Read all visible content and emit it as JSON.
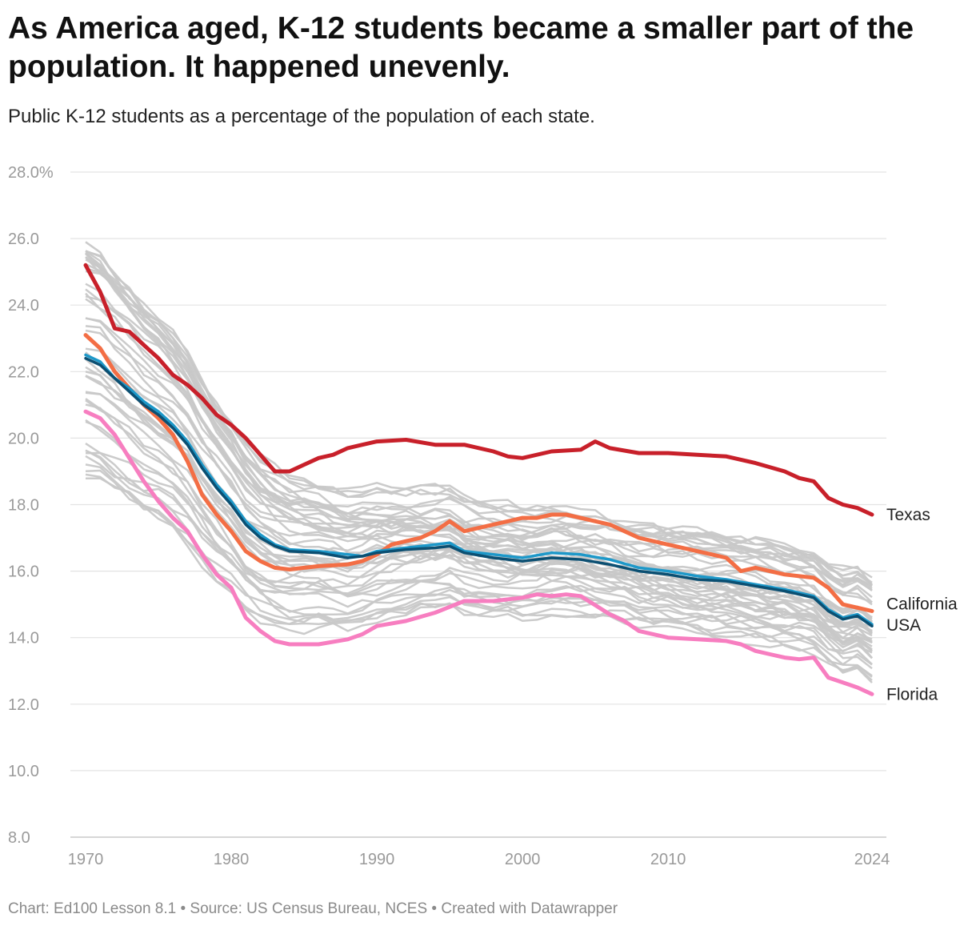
{
  "title": "As America aged, K-12 students became a smaller part of the population. It happened unevenly.",
  "subtitle": "Public K-12 students as a percentage of the population of each state.",
  "footer": "Chart: Ed100 Lesson 8.1 • Source: US Census Bureau, NCES • Created with Datawrapper",
  "chart_data": {
    "type": "line",
    "title": "As America aged, K-12 students became a smaller part of the population. It happened unevenly.",
    "subtitle": "Public K-12 students as a percentage of the population of each state.",
    "xlabel": "",
    "ylabel": "",
    "xlim": [
      1970,
      2024
    ],
    "ylim": [
      8,
      28
    ],
    "x_ticks": [
      {
        "value": 1970,
        "label": "1970"
      },
      {
        "value": 1980,
        "label": "1980"
      },
      {
        "value": 1990,
        "label": "1990"
      },
      {
        "value": 2000,
        "label": "2000"
      },
      {
        "value": 2010,
        "label": "2010"
      },
      {
        "value": 2024,
        "label": "2024"
      }
    ],
    "y_ticks": [
      {
        "value": 28,
        "label": "28.0%"
      },
      {
        "value": 26,
        "label": "26.0"
      },
      {
        "value": 24,
        "label": "24.0"
      },
      {
        "value": 22,
        "label": "22.0"
      },
      {
        "value": 20,
        "label": "20.0"
      },
      {
        "value": 18,
        "label": "18.0"
      },
      {
        "value": 16,
        "label": "16.0"
      },
      {
        "value": 14,
        "label": "14.0"
      },
      {
        "value": 12,
        "label": "12.0"
      },
      {
        "value": 10,
        "label": "10.0"
      },
      {
        "value": 8,
        "label": "8.0"
      }
    ],
    "grid": true,
    "legend": "direct labels at line ends",
    "background_color": "#c8c8c8",
    "series": [
      {
        "name": "Texas",
        "color": "#c8202a",
        "points": [
          [
            1970,
            25.2
          ],
          [
            1971,
            24.4
          ],
          [
            1972,
            23.3
          ],
          [
            1973,
            23.2
          ],
          [
            1974,
            22.8
          ],
          [
            1975,
            22.4
          ],
          [
            1976,
            21.9
          ],
          [
            1977,
            21.6
          ],
          [
            1978,
            21.2
          ],
          [
            1979,
            20.7
          ],
          [
            1980,
            20.4
          ],
          [
            1981,
            20.0
          ],
          [
            1982,
            19.5
          ],
          [
            1983,
            19.0
          ],
          [
            1984,
            19.0
          ],
          [
            1985,
            19.2
          ],
          [
            1986,
            19.4
          ],
          [
            1987,
            19.5
          ],
          [
            1988,
            19.7
          ],
          [
            1989,
            19.8
          ],
          [
            1990,
            19.9
          ],
          [
            1992,
            19.95
          ],
          [
            1994,
            19.8
          ],
          [
            1996,
            19.8
          ],
          [
            1998,
            19.6
          ],
          [
            1999,
            19.45
          ],
          [
            2000,
            19.4
          ],
          [
            2002,
            19.6
          ],
          [
            2004,
            19.65
          ],
          [
            2005,
            19.9
          ],
          [
            2006,
            19.7
          ],
          [
            2008,
            19.55
          ],
          [
            2010,
            19.55
          ],
          [
            2012,
            19.5
          ],
          [
            2014,
            19.45
          ],
          [
            2016,
            19.25
          ],
          [
            2018,
            19.0
          ],
          [
            2019,
            18.8
          ],
          [
            2020,
            18.7
          ],
          [
            2021,
            18.2
          ],
          [
            2022,
            18.0
          ],
          [
            2023,
            17.9
          ],
          [
            2024,
            17.7
          ]
        ]
      },
      {
        "name": "California",
        "color": "#f36e45",
        "points": [
          [
            1970,
            23.1
          ],
          [
            1971,
            22.7
          ],
          [
            1972,
            22.0
          ],
          [
            1973,
            21.5
          ],
          [
            1974,
            21.0
          ],
          [
            1975,
            20.6
          ],
          [
            1976,
            20.1
          ],
          [
            1977,
            19.3
          ],
          [
            1978,
            18.3
          ],
          [
            1979,
            17.7
          ],
          [
            1980,
            17.2
          ],
          [
            1981,
            16.6
          ],
          [
            1982,
            16.3
          ],
          [
            1983,
            16.1
          ],
          [
            1984,
            16.05
          ],
          [
            1985,
            16.1
          ],
          [
            1986,
            16.15
          ],
          [
            1988,
            16.2
          ],
          [
            1989,
            16.3
          ],
          [
            1990,
            16.5
          ],
          [
            1991,
            16.8
          ],
          [
            1992,
            16.9
          ],
          [
            1993,
            17.0
          ],
          [
            1994,
            17.2
          ],
          [
            1995,
            17.5
          ],
          [
            1996,
            17.2
          ],
          [
            1997,
            17.3
          ],
          [
            1998,
            17.4
          ],
          [
            1999,
            17.5
          ],
          [
            2000,
            17.6
          ],
          [
            2001,
            17.6
          ],
          [
            2002,
            17.7
          ],
          [
            2003,
            17.7
          ],
          [
            2004,
            17.6
          ],
          [
            2005,
            17.5
          ],
          [
            2006,
            17.4
          ],
          [
            2007,
            17.2
          ],
          [
            2008,
            17.0
          ],
          [
            2010,
            16.8
          ],
          [
            2012,
            16.6
          ],
          [
            2013,
            16.5
          ],
          [
            2014,
            16.4
          ],
          [
            2015,
            16.0
          ],
          [
            2016,
            16.1
          ],
          [
            2018,
            15.9
          ],
          [
            2019,
            15.85
          ],
          [
            2020,
            15.8
          ],
          [
            2021,
            15.5
          ],
          [
            2022,
            15.0
          ],
          [
            2023,
            14.9
          ],
          [
            2024,
            14.8
          ]
        ]
      },
      {
        "name": "",
        "color": "#1d98c9",
        "points": [
          [
            1970,
            22.5
          ],
          [
            1971,
            22.3
          ],
          [
            1972,
            21.8
          ],
          [
            1973,
            21.5
          ],
          [
            1974,
            21.1
          ],
          [
            1975,
            20.8
          ],
          [
            1976,
            20.4
          ],
          [
            1977,
            19.9
          ],
          [
            1978,
            19.2
          ],
          [
            1979,
            18.6
          ],
          [
            1980,
            18.1
          ],
          [
            1981,
            17.5
          ],
          [
            1982,
            17.1
          ],
          [
            1983,
            16.8
          ],
          [
            1984,
            16.65
          ],
          [
            1986,
            16.6
          ],
          [
            1988,
            16.5
          ],
          [
            1989,
            16.45
          ],
          [
            1990,
            16.6
          ],
          [
            1992,
            16.7
          ],
          [
            1994,
            16.8
          ],
          [
            1995,
            16.85
          ],
          [
            1996,
            16.6
          ],
          [
            1998,
            16.5
          ],
          [
            2000,
            16.4
          ],
          [
            2002,
            16.55
          ],
          [
            2004,
            16.5
          ],
          [
            2006,
            16.35
          ],
          [
            2008,
            16.1
          ],
          [
            2010,
            16.0
          ],
          [
            2012,
            15.85
          ],
          [
            2014,
            15.75
          ],
          [
            2016,
            15.6
          ],
          [
            2018,
            15.45
          ],
          [
            2020,
            15.25
          ],
          [
            2021,
            14.85
          ],
          [
            2022,
            14.6
          ],
          [
            2023,
            14.7
          ],
          [
            2024,
            14.4
          ]
        ]
      },
      {
        "name": "USA",
        "color": "#0b4f72",
        "points": [
          [
            1970,
            22.4
          ],
          [
            1971,
            22.2
          ],
          [
            1972,
            21.8
          ],
          [
            1973,
            21.4
          ],
          [
            1974,
            21.0
          ],
          [
            1975,
            20.7
          ],
          [
            1976,
            20.3
          ],
          [
            1977,
            19.8
          ],
          [
            1978,
            19.1
          ],
          [
            1979,
            18.5
          ],
          [
            1980,
            18.0
          ],
          [
            1981,
            17.4
          ],
          [
            1982,
            17.0
          ],
          [
            1983,
            16.75
          ],
          [
            1984,
            16.6
          ],
          [
            1986,
            16.55
          ],
          [
            1988,
            16.4
          ],
          [
            1989,
            16.45
          ],
          [
            1990,
            16.55
          ],
          [
            1992,
            16.65
          ],
          [
            1994,
            16.7
          ],
          [
            1995,
            16.75
          ],
          [
            1996,
            16.55
          ],
          [
            1998,
            16.4
          ],
          [
            2000,
            16.3
          ],
          [
            2002,
            16.4
          ],
          [
            2004,
            16.35
          ],
          [
            2006,
            16.2
          ],
          [
            2008,
            16.0
          ],
          [
            2010,
            15.9
          ],
          [
            2012,
            15.75
          ],
          [
            2014,
            15.7
          ],
          [
            2016,
            15.55
          ],
          [
            2018,
            15.4
          ],
          [
            2020,
            15.2
          ],
          [
            2021,
            14.8
          ],
          [
            2022,
            14.55
          ],
          [
            2023,
            14.65
          ],
          [
            2024,
            14.35
          ]
        ]
      },
      {
        "name": "Florida",
        "color": "#f77ec0",
        "points": [
          [
            1970,
            20.8
          ],
          [
            1971,
            20.6
          ],
          [
            1972,
            20.1
          ],
          [
            1973,
            19.4
          ],
          [
            1974,
            18.7
          ],
          [
            1975,
            18.1
          ],
          [
            1976,
            17.6
          ],
          [
            1977,
            17.2
          ],
          [
            1978,
            16.5
          ],
          [
            1979,
            15.9
          ],
          [
            1980,
            15.5
          ],
          [
            1981,
            14.6
          ],
          [
            1982,
            14.2
          ],
          [
            1983,
            13.9
          ],
          [
            1984,
            13.8
          ],
          [
            1986,
            13.8
          ],
          [
            1988,
            13.95
          ],
          [
            1989,
            14.1
          ],
          [
            1990,
            14.35
          ],
          [
            1992,
            14.5
          ],
          [
            1994,
            14.75
          ],
          [
            1996,
            15.1
          ],
          [
            1998,
            15.1
          ],
          [
            2000,
            15.2
          ],
          [
            2001,
            15.3
          ],
          [
            2002,
            15.25
          ],
          [
            2003,
            15.3
          ],
          [
            2004,
            15.25
          ],
          [
            2006,
            14.7
          ],
          [
            2007,
            14.5
          ],
          [
            2008,
            14.2
          ],
          [
            2010,
            14.0
          ],
          [
            2012,
            13.95
          ],
          [
            2014,
            13.9
          ],
          [
            2015,
            13.8
          ],
          [
            2016,
            13.6
          ],
          [
            2017,
            13.5
          ],
          [
            2018,
            13.4
          ],
          [
            2019,
            13.35
          ],
          [
            2020,
            13.4
          ],
          [
            2021,
            12.8
          ],
          [
            2022,
            12.65
          ],
          [
            2023,
            12.5
          ],
          [
            2024,
            12.3
          ]
        ]
      }
    ]
  }
}
